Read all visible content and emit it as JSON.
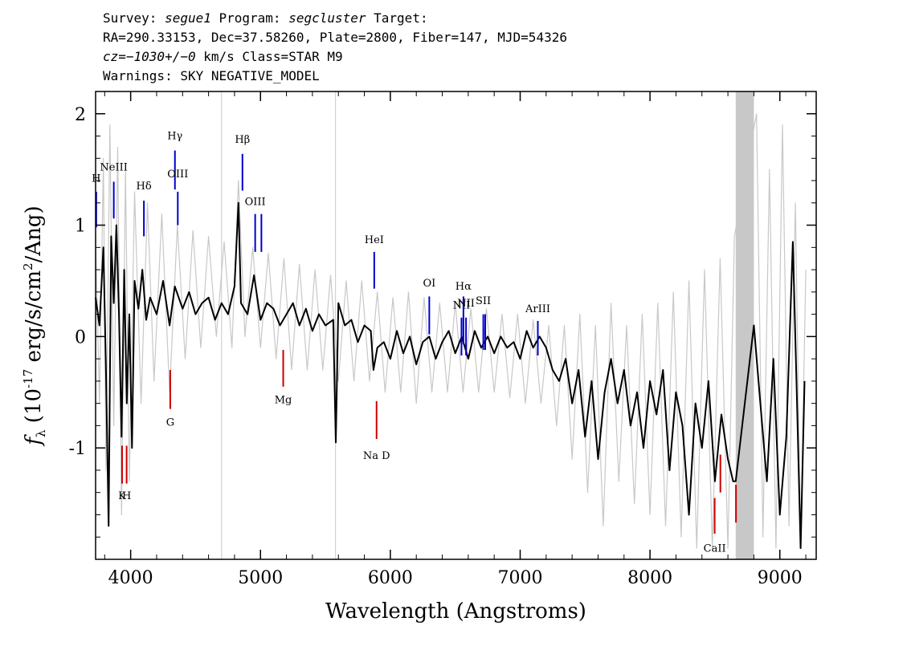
{
  "header": {
    "line1": {
      "pre": "Survey: ",
      "survey": "segue1",
      "mid": " Program: ",
      "program": "segcluster",
      "post": " Target:"
    },
    "line2": "RA=290.33153, Dec=37.58260, Plate=2800, Fiber=147, MJD=54326",
    "line3": {
      "cz": "cz=−1030+/−0",
      "rest": " km/s Class=STAR M9"
    },
    "line4": "Warnings: SKY NEGATIVE_MODEL"
  },
  "chart_data": {
    "type": "line",
    "xlabel": "Wavelength (Angstroms)",
    "ylabel": "f_λ (10^-17 erg/s/cm^2/Ang)",
    "xlim": [
      3730,
      9280
    ],
    "ylim": [
      -2.0,
      2.2
    ],
    "xticks": [
      4000,
      5000,
      6000,
      7000,
      8000,
      9000
    ],
    "yticks": [
      -1,
      0,
      1,
      2
    ],
    "masked_band": [
      8660,
      8800
    ],
    "vertical_markers": [
      4700,
      5578
    ],
    "series": [
      {
        "role": "flux",
        "color": "#000000",
        "points": [
          [
            3730,
            0.35
          ],
          [
            3760,
            0.1
          ],
          [
            3790,
            0.8
          ],
          [
            3810,
            -0.3
          ],
          [
            3830,
            -1.7
          ],
          [
            3850,
            0.9
          ],
          [
            3870,
            0.3
          ],
          [
            3890,
            1.0
          ],
          [
            3910,
            0.2
          ],
          [
            3930,
            -0.9
          ],
          [
            3950,
            0.6
          ],
          [
            3970,
            -0.6
          ],
          [
            3990,
            0.2
          ],
          [
            4010,
            -1.0
          ],
          [
            4030,
            0.5
          ],
          [
            4060,
            0.25
          ],
          [
            4090,
            0.6
          ],
          [
            4120,
            0.15
          ],
          [
            4150,
            0.35
          ],
          [
            4200,
            0.2
          ],
          [
            4250,
            0.5
          ],
          [
            4300,
            0.1
          ],
          [
            4340,
            0.45
          ],
          [
            4400,
            0.25
          ],
          [
            4450,
            0.4
          ],
          [
            4500,
            0.2
          ],
          [
            4550,
            0.3
          ],
          [
            4600,
            0.35
          ],
          [
            4650,
            0.15
          ],
          [
            4700,
            0.3
          ],
          [
            4750,
            0.2
          ],
          [
            4800,
            0.45
          ],
          [
            4830,
            1.2
          ],
          [
            4850,
            0.3
          ],
          [
            4900,
            0.2
          ],
          [
            4950,
            0.55
          ],
          [
            5000,
            0.15
          ],
          [
            5050,
            0.3
          ],
          [
            5100,
            0.25
          ],
          [
            5150,
            0.1
          ],
          [
            5200,
            0.2
          ],
          [
            5250,
            0.3
          ],
          [
            5300,
            0.1
          ],
          [
            5350,
            0.25
          ],
          [
            5400,
            0.05
          ],
          [
            5450,
            0.2
          ],
          [
            5500,
            0.1
          ],
          [
            5560,
            0.15
          ],
          [
            5580,
            -0.95
          ],
          [
            5600,
            0.3
          ],
          [
            5650,
            0.1
          ],
          [
            5700,
            0.15
          ],
          [
            5750,
            -0.05
          ],
          [
            5800,
            0.1
          ],
          [
            5850,
            0.05
          ],
          [
            5870,
            -0.3
          ],
          [
            5900,
            -0.1
          ],
          [
            5950,
            -0.05
          ],
          [
            6000,
            -0.2
          ],
          [
            6050,
            0.05
          ],
          [
            6100,
            -0.15
          ],
          [
            6150,
            0.0
          ],
          [
            6200,
            -0.25
          ],
          [
            6250,
            -0.05
          ],
          [
            6300,
            0.0
          ],
          [
            6350,
            -0.2
          ],
          [
            6400,
            -0.05
          ],
          [
            6450,
            0.05
          ],
          [
            6500,
            -0.15
          ],
          [
            6550,
            0.0
          ],
          [
            6600,
            -0.2
          ],
          [
            6650,
            0.05
          ],
          [
            6700,
            -0.1
          ],
          [
            6750,
            0.0
          ],
          [
            6800,
            -0.15
          ],
          [
            6850,
            0.0
          ],
          [
            6900,
            -0.1
          ],
          [
            6950,
            -0.05
          ],
          [
            7000,
            -0.2
          ],
          [
            7050,
            0.05
          ],
          [
            7100,
            -0.1
          ],
          [
            7150,
            0.0
          ],
          [
            7200,
            -0.1
          ],
          [
            7250,
            -0.3
          ],
          [
            7300,
            -0.4
          ],
          [
            7350,
            -0.2
          ],
          [
            7400,
            -0.6
          ],
          [
            7450,
            -0.3
          ],
          [
            7500,
            -0.9
          ],
          [
            7550,
            -0.4
          ],
          [
            7600,
            -1.1
          ],
          [
            7650,
            -0.5
          ],
          [
            7700,
            -0.2
          ],
          [
            7750,
            -0.6
          ],
          [
            7800,
            -0.3
          ],
          [
            7850,
            -0.8
          ],
          [
            7900,
            -0.5
          ],
          [
            7950,
            -1.0
          ],
          [
            8000,
            -0.4
          ],
          [
            8050,
            -0.7
          ],
          [
            8100,
            -0.3
          ],
          [
            8150,
            -1.2
          ],
          [
            8200,
            -0.5
          ],
          [
            8250,
            -0.8
          ],
          [
            8300,
            -1.6
          ],
          [
            8350,
            -0.6
          ],
          [
            8400,
            -1.0
          ],
          [
            8450,
            -0.4
          ],
          [
            8500,
            -1.3
          ],
          [
            8550,
            -0.7
          ],
          [
            8600,
            -1.1
          ],
          [
            8640,
            -1.3
          ],
          [
            8660,
            -1.3
          ],
          [
            8800,
            0.1
          ],
          [
            8850,
            -0.6
          ],
          [
            8900,
            -1.3
          ],
          [
            8950,
            -0.2
          ],
          [
            9000,
            -1.6
          ],
          [
            9050,
            -0.9
          ],
          [
            9100,
            0.85
          ],
          [
            9130,
            -0.5
          ],
          [
            9160,
            -1.9
          ],
          [
            9190,
            -0.4
          ]
        ]
      },
      {
        "role": "uncertainty",
        "color": "#c8c8c8",
        "points": [
          [
            3730,
            0.9
          ],
          [
            3760,
            -0.6
          ],
          [
            3790,
            1.6
          ],
          [
            3810,
            -1.2
          ],
          [
            3840,
            1.9
          ],
          [
            3870,
            -0.8
          ],
          [
            3900,
            1.7
          ],
          [
            3930,
            -1.6
          ],
          [
            3960,
            1.5
          ],
          [
            3990,
            -1.3
          ],
          [
            4030,
            1.3
          ],
          [
            4080,
            -0.6
          ],
          [
            4130,
            1.2
          ],
          [
            4180,
            -0.4
          ],
          [
            4240,
            1.1
          ],
          [
            4300,
            -0.5
          ],
          [
            4360,
            1.0
          ],
          [
            4420,
            -0.2
          ],
          [
            4480,
            0.95
          ],
          [
            4540,
            -0.1
          ],
          [
            4600,
            0.9
          ],
          [
            4660,
            0.0
          ],
          [
            4720,
            0.85
          ],
          [
            4780,
            -0.1
          ],
          [
            4830,
            1.4
          ],
          [
            4880,
            0.0
          ],
          [
            4940,
            0.8
          ],
          [
            5000,
            -0.1
          ],
          [
            5060,
            0.75
          ],
          [
            5120,
            -0.2
          ],
          [
            5180,
            0.7
          ],
          [
            5240,
            -0.3
          ],
          [
            5300,
            0.65
          ],
          [
            5360,
            -0.3
          ],
          [
            5420,
            0.6
          ],
          [
            5480,
            -0.3
          ],
          [
            5540,
            0.55
          ],
          [
            5600,
            -0.4
          ],
          [
            5660,
            0.5
          ],
          [
            5720,
            -0.4
          ],
          [
            5780,
            0.5
          ],
          [
            5840,
            -0.4
          ],
          [
            5900,
            0.4
          ],
          [
            5960,
            -0.5
          ],
          [
            6020,
            0.35
          ],
          [
            6080,
            -0.5
          ],
          [
            6140,
            0.4
          ],
          [
            6200,
            -0.6
          ],
          [
            6260,
            0.35
          ],
          [
            6320,
            -0.5
          ],
          [
            6380,
            0.3
          ],
          [
            6440,
            -0.5
          ],
          [
            6500,
            0.3
          ],
          [
            6560,
            -0.5
          ],
          [
            6620,
            0.25
          ],
          [
            6680,
            -0.5
          ],
          [
            6740,
            0.25
          ],
          [
            6800,
            -0.5
          ],
          [
            6860,
            0.2
          ],
          [
            6920,
            -0.55
          ],
          [
            6980,
            0.2
          ],
          [
            7040,
            -0.6
          ],
          [
            7100,
            0.15
          ],
          [
            7160,
            -0.6
          ],
          [
            7220,
            0.1
          ],
          [
            7280,
            -0.8
          ],
          [
            7340,
            0.1
          ],
          [
            7400,
            -1.1
          ],
          [
            7460,
            0.2
          ],
          [
            7520,
            -1.4
          ],
          [
            7580,
            0.1
          ],
          [
            7640,
            -1.7
          ],
          [
            7700,
            0.3
          ],
          [
            7760,
            -1.3
          ],
          [
            7820,
            0.1
          ],
          [
            7880,
            -1.5
          ],
          [
            7940,
            0.2
          ],
          [
            8000,
            -1.6
          ],
          [
            8060,
            0.3
          ],
          [
            8120,
            -1.7
          ],
          [
            8180,
            0.4
          ],
          [
            8240,
            -1.8
          ],
          [
            8300,
            0.5
          ],
          [
            8360,
            -1.9
          ],
          [
            8420,
            0.6
          ],
          [
            8480,
            -1.9
          ],
          [
            8540,
            0.7
          ],
          [
            8600,
            -1.9
          ],
          [
            8650,
            0.9
          ],
          [
            8820,
            2.0
          ],
          [
            8870,
            -1.8
          ],
          [
            8920,
            1.5
          ],
          [
            8970,
            -1.9
          ],
          [
            9020,
            1.9
          ],
          [
            9070,
            -1.7
          ],
          [
            9120,
            1.2
          ],
          [
            9160,
            -1.9
          ],
          [
            9200,
            0.6
          ]
        ]
      }
    ],
    "line_markers": [
      {
        "label": "H",
        "x": 3735,
        "y1": 0.98,
        "y2": 1.3,
        "color": "#0000cc",
        "label_y": 1.39
      },
      {
        "label": "NeIII",
        "x": 3870,
        "y1": 1.06,
        "y2": 1.39,
        "color": "#0000cc",
        "label_y": 1.49
      },
      {
        "label": "Hδ",
        "x": 4102,
        "y1": 0.9,
        "y2": 1.22,
        "color": "#0000cc",
        "label_y": 1.32
      },
      {
        "label": "Hγ",
        "x": 4341,
        "y1": 1.32,
        "y2": 1.67,
        "color": "#0000cc",
        "label_y": 1.77
      },
      {
        "label": "OIII",
        "x": 4363,
        "y1": 1.0,
        "y2": 1.3,
        "color": "#0000cc",
        "label_y": 1.43
      },
      {
        "label": "Hβ",
        "x": 4861,
        "y1": 1.31,
        "y2": 1.64,
        "color": "#0000cc",
        "label_y": 1.74
      },
      {
        "label": "OIII",
        "x": 4959,
        "y1": 0.76,
        "y2": 1.1,
        "color": "#0000cc",
        "label_y": 1.18
      },
      {
        "label": "",
        "x": 5007,
        "y1": 0.76,
        "y2": 1.1,
        "color": "#0000cc",
        "label_y": 1.18
      },
      {
        "label": "HeI",
        "x": 5876,
        "y1": 0.43,
        "y2": 0.76,
        "color": "#0000cc",
        "label_y": 0.84
      },
      {
        "label": "OI",
        "x": 6300,
        "y1": 0.02,
        "y2": 0.36,
        "color": "#0000cc",
        "label_y": 0.45
      },
      {
        "label": "NII",
        "x": 6548,
        "y1": -0.17,
        "y2": 0.17,
        "color": "#0000cc",
        "label_y": 0.25
      },
      {
        "label": "Hα",
        "x": 6563,
        "y1": -0.07,
        "y2": 0.36,
        "color": "#0000cc",
        "label_y": 0.42
      },
      {
        "label": "NII",
        "x": 6583,
        "y1": -0.17,
        "y2": 0.17,
        "color": "#0000cc",
        "label_y": 0.27
      },
      {
        "label": "SII",
        "x": 6716,
        "y1": -0.12,
        "y2": 0.2,
        "color": "#0000cc",
        "label_y": 0.29
      },
      {
        "label": "",
        "x": 6731,
        "y1": -0.12,
        "y2": 0.2,
        "color": "#0000cc",
        "label_y": 0.29
      },
      {
        "label": "ArIII",
        "x": 7136,
        "y1": -0.17,
        "y2": 0.14,
        "color": "#0000cc",
        "label_y": 0.22
      },
      {
        "label": "K",
        "x": 3934,
        "y1": -1.32,
        "y2": -0.98,
        "color": "#cc0000",
        "label_y": -1.46
      },
      {
        "label": "H",
        "x": 3969,
        "y1": -1.32,
        "y2": -0.98,
        "color": "#cc0000",
        "label_y": -1.46
      },
      {
        "label": "G",
        "x": 4305,
        "y1": -0.65,
        "y2": -0.3,
        "color": "#cc0000",
        "label_y": -0.8
      },
      {
        "label": "Mg",
        "x": 5175,
        "y1": -0.45,
        "y2": -0.12,
        "color": "#cc0000",
        "label_y": -0.6
      },
      {
        "label": "Na D",
        "x": 5894,
        "y1": -0.92,
        "y2": -0.58,
        "color": "#cc0000",
        "label_y": -1.1
      },
      {
        "label": "CaII",
        "x": 8498,
        "y1": -1.77,
        "y2": -1.45,
        "color": "#cc0000",
        "label_y": -1.93
      },
      {
        "label": "",
        "x": 8542,
        "y1": -1.4,
        "y2": -1.06,
        "color": "#cc0000",
        "label_y": -1.93
      },
      {
        "label": "",
        "x": 8662,
        "y1": -1.67,
        "y2": -1.33,
        "color": "#cc0000",
        "label_y": -1.93
      }
    ]
  }
}
